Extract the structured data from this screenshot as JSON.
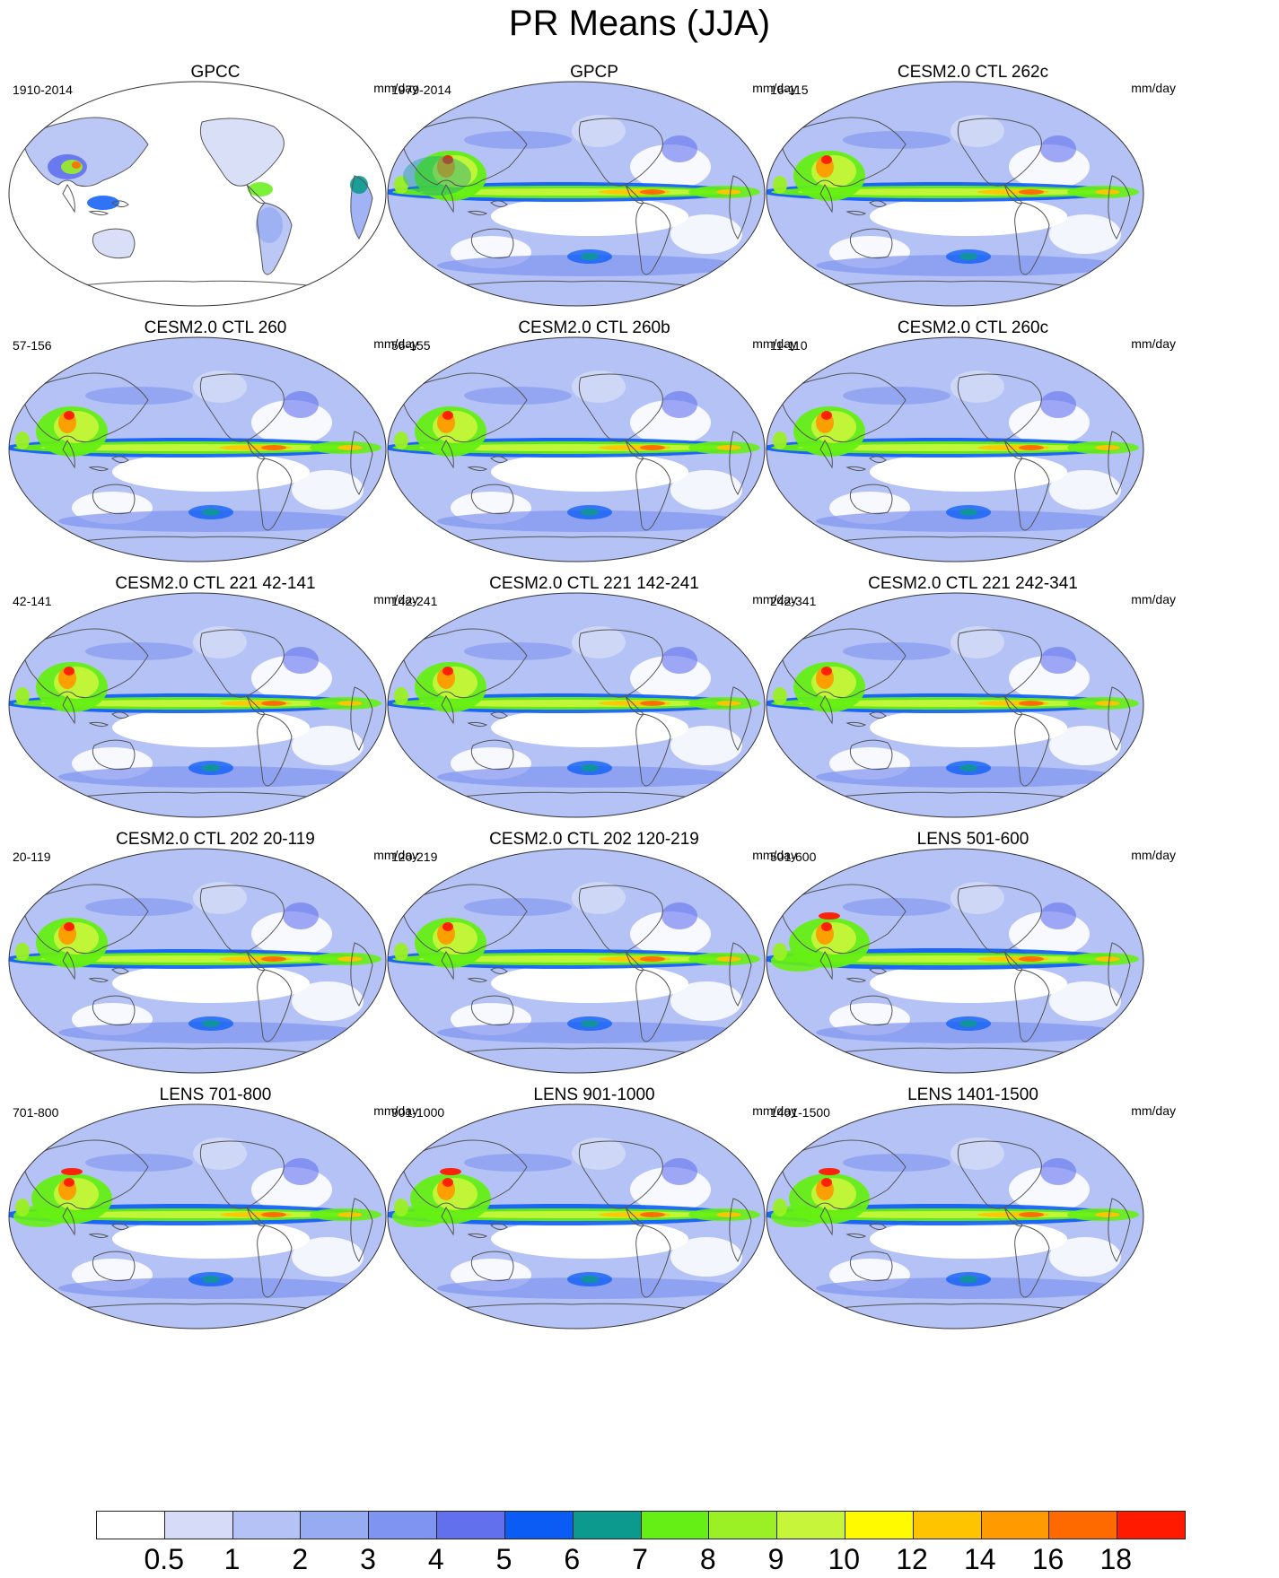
{
  "title": "PR Means (JJA)",
  "units": "mm/day",
  "panels": [
    {
      "title": "GPCC",
      "period": "1910-2014",
      "kind": "obs_land"
    },
    {
      "title": "GPCP",
      "period": "1979-2014",
      "kind": "obs"
    },
    {
      "title": "CESM2.0 CTL 262c",
      "period": "16-115",
      "kind": "model"
    },
    {
      "title": "CESM2.0 CTL 260",
      "period": "57-156",
      "kind": "model"
    },
    {
      "title": "CESM2.0 CTL 260b",
      "period": "56-155",
      "kind": "model"
    },
    {
      "title": "CESM2.0 CTL 260c",
      "period": "11-110",
      "kind": "model"
    },
    {
      "title": "CESM2.0 CTL 221 42-141",
      "period": "42-141",
      "kind": "model"
    },
    {
      "title": "CESM2.0 CTL 221 142-241",
      "period": "142-241",
      "kind": "model"
    },
    {
      "title": "CESM2.0 CTL 221 242-341",
      "period": "242-341",
      "kind": "model"
    },
    {
      "title": "CESM2.0 CTL 202 20-119",
      "period": "20-119",
      "kind": "model"
    },
    {
      "title": "CESM2.0 CTL 202 120-219",
      "period": "120-219",
      "kind": "model"
    },
    {
      "title": "LENS 501-600",
      "period": "501-600",
      "kind": "lens"
    },
    {
      "title": "LENS 701-800",
      "period": "701-800",
      "kind": "lens"
    },
    {
      "title": "LENS 901-1000",
      "period": "901-1000",
      "kind": "lens"
    },
    {
      "title": "LENS 1401-1500",
      "period": "1401-1500",
      "kind": "lens"
    }
  ],
  "colorbar": {
    "levels": [
      "0.5",
      "1",
      "2",
      "3",
      "4",
      "5",
      "6",
      "7",
      "8",
      "9",
      "10",
      "12",
      "14",
      "16",
      "18"
    ],
    "colors": [
      "#ffffff",
      "#d6dcf7",
      "#b4c2f5",
      "#97abf3",
      "#7f93f0",
      "#6270ee",
      "#0a5cf5",
      "#0d9a8e",
      "#66ef14",
      "#9af024",
      "#c6f53a",
      "#fffa00",
      "#ffc400",
      "#ff9a00",
      "#ff6a00",
      "#ff1a00"
    ]
  }
}
